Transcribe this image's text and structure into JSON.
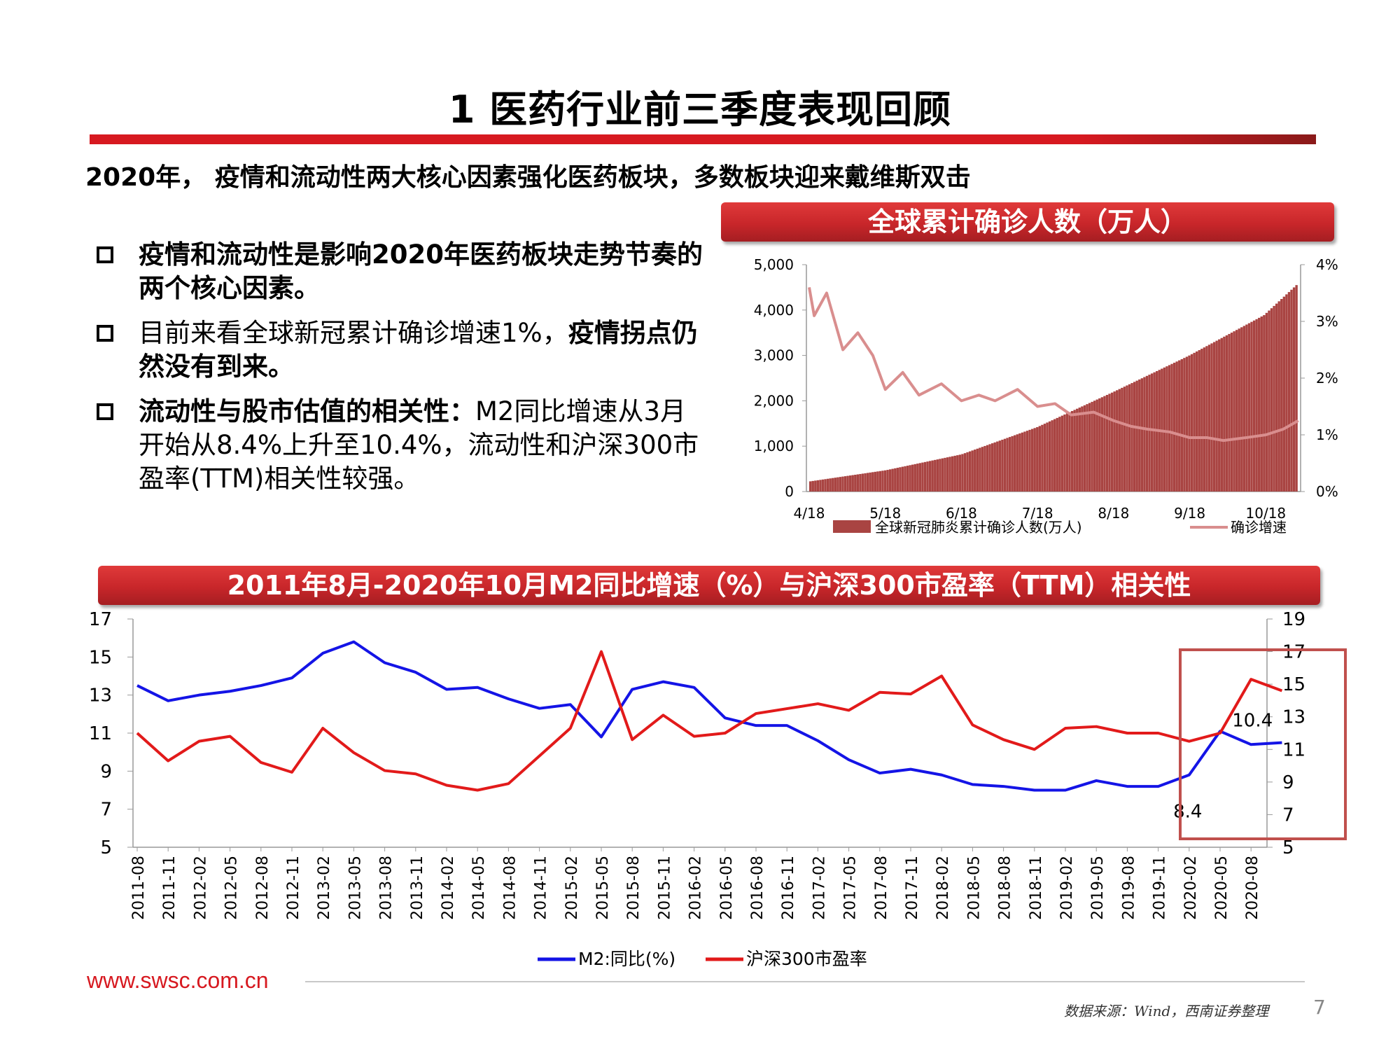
{
  "page": {
    "title": "1 医药行业前三季度表现回顾",
    "subtitle": "2020年， 疫情和流动性两大核心因素强化医药板块，多数板块迎来戴维斯双击",
    "footer_url": "www.swsc.com.cn",
    "source": "数据来源：Wind，西南证券整理",
    "page_number": "7",
    "accent_color": "#d71920"
  },
  "bullets": [
    {
      "bold": "疫情和流动性是影响2020年医药板块走势节奏的两个核心因素。",
      "normal": ""
    },
    {
      "normal_before": "目前来看全球新冠累计确诊增速1%，",
      "bold": "疫情拐点仍然没有到来。"
    },
    {
      "bold": "流动性与股市估值的相关性：",
      "normal": "M2同比增速从3月开始从8.4%上升至10.4%，流动性和沪深300市盈率(TTM)相关性较强。"
    }
  ],
  "chart_data": [
    {
      "type": "bar+line",
      "title": "全球累计确诊人数（万人）",
      "x_tick_labels": [
        "4/18",
        "5/18",
        "6/18",
        "7/18",
        "8/18",
        "9/18",
        "10/18"
      ],
      "y_left": {
        "ylim": [
          0,
          5000
        ],
        "ticks": [
          "5,000",
          "4,000",
          "3,000",
          "2,000",
          "1,000",
          "0"
        ]
      },
      "y_right": {
        "ylim": [
          0,
          4
        ],
        "ticks": [
          "4%",
          "3%",
          "2%",
          "1%",
          "0%"
        ]
      },
      "series": [
        {
          "name": "全球新冠肺炎累计确诊人数(万人)",
          "type": "bar",
          "color": "#a94442",
          "axis": "left",
          "x": [
            "4/18",
            "5/18",
            "6/18",
            "7/18",
            "8/18",
            "9/18",
            "10/18",
            "10/31"
          ],
          "values": [
            225,
            470,
            820,
            1420,
            2190,
            2990,
            3890,
            4550
          ]
        },
        {
          "name": "确诊增速",
          "type": "line",
          "color": "#d98e8e",
          "axis": "right",
          "x": [
            "4/18",
            "4/20",
            "4/25",
            "5/1",
            "5/7",
            "5/13",
            "5/18",
            "5/25",
            "6/1",
            "6/10",
            "6/18",
            "6/25",
            "7/1",
            "7/10",
            "7/18",
            "7/25",
            "8/1",
            "8/10",
            "8/18",
            "8/25",
            "9/1",
            "9/10",
            "9/18",
            "9/25",
            "10/1",
            "10/10",
            "10/18",
            "10/25",
            "10/31"
          ],
          "values": [
            3.6,
            3.1,
            3.5,
            2.5,
            2.8,
            2.4,
            1.8,
            2.1,
            1.7,
            1.9,
            1.6,
            1.7,
            1.6,
            1.8,
            1.5,
            1.55,
            1.35,
            1.4,
            1.25,
            1.15,
            1.1,
            1.05,
            0.95,
            0.95,
            0.9,
            0.95,
            1.0,
            1.1,
            1.25
          ]
        }
      ]
    },
    {
      "type": "line",
      "title": "2011年8月-2020年10月M2同比增速（%）与沪深300市盈率（TTM）相关性",
      "categories": [
        "2011-08",
        "2011-11",
        "2012-02",
        "2012-05",
        "2012-08",
        "2012-11",
        "2013-02",
        "2013-05",
        "2013-08",
        "2013-11",
        "2014-02",
        "2014-05",
        "2014-08",
        "2014-11",
        "2015-02",
        "2015-05",
        "2015-08",
        "2015-11",
        "2016-02",
        "2016-05",
        "2016-08",
        "2016-11",
        "2017-02",
        "2017-05",
        "2017-08",
        "2017-11",
        "2018-02",
        "2018-05",
        "2018-08",
        "2018-11",
        "2019-02",
        "2019-05",
        "2019-08",
        "2019-11",
        "2020-02",
        "2020-05",
        "2020-08",
        "2020-10"
      ],
      "y_left": {
        "ylim": [
          5,
          17
        ],
        "ticks": [
          "17",
          "15",
          "13",
          "11",
          "9",
          "7",
          "5"
        ]
      },
      "y_right": {
        "ylim": [
          5,
          19
        ],
        "ticks": [
          "19",
          "17",
          "15",
          "13",
          "11",
          "9",
          "7",
          "5"
        ]
      },
      "series": [
        {
          "name": "M2:同比(%)",
          "color": "#1414e6",
          "axis": "left",
          "values": [
            13.5,
            12.7,
            13.0,
            13.2,
            13.5,
            13.9,
            15.2,
            15.8,
            14.7,
            14.2,
            13.3,
            13.4,
            12.8,
            12.3,
            12.5,
            10.8,
            13.3,
            13.7,
            13.4,
            11.8,
            11.4,
            11.4,
            10.6,
            9.6,
            8.9,
            9.1,
            8.8,
            8.3,
            8.2,
            8.0,
            8.0,
            8.5,
            8.2,
            8.2,
            8.8,
            11.1,
            10.4,
            10.5
          ]
        },
        {
          "name": "沪深300市盈率",
          "color": "#e21a1a",
          "axis": "right",
          "values": [
            12.0,
            10.3,
            11.5,
            11.8,
            10.2,
            9.6,
            12.3,
            10.8,
            9.7,
            9.5,
            8.8,
            8.5,
            8.9,
            10.6,
            12.3,
            17.0,
            11.6,
            13.1,
            11.8,
            12.0,
            13.2,
            13.5,
            13.8,
            13.4,
            14.5,
            14.4,
            15.5,
            12.5,
            11.6,
            11.0,
            12.3,
            12.4,
            12.0,
            12.0,
            11.5,
            12.0,
            15.3,
            14.6
          ]
        }
      ],
      "annotations": [
        "8.4",
        "10.4"
      ],
      "highlight_color": "#c0504d"
    }
  ]
}
